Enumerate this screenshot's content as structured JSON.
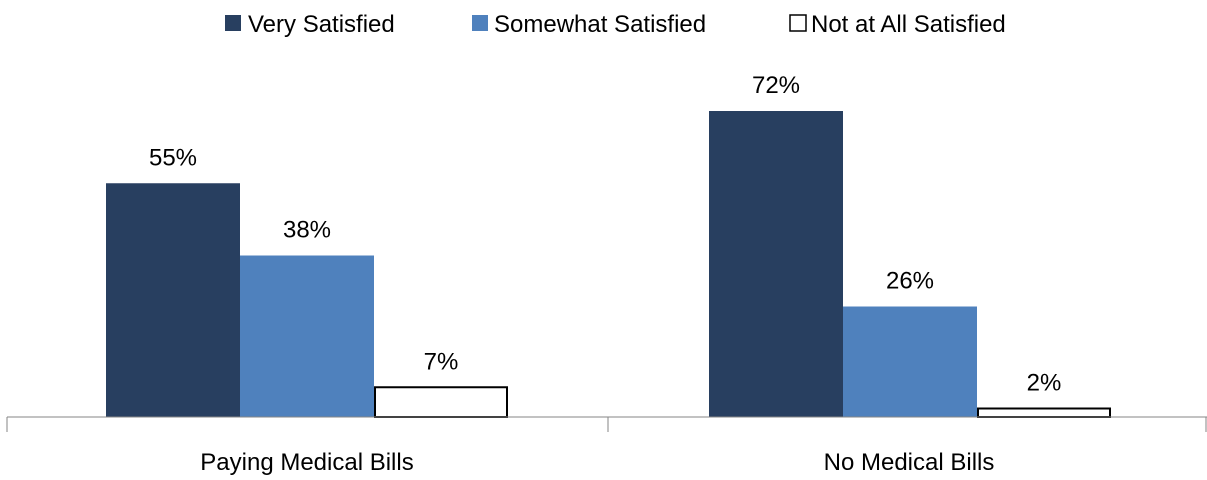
{
  "chart_data": {
    "type": "bar",
    "categories": [
      "Paying Medical Bills",
      "No Medical Bills"
    ],
    "series": [
      {
        "name": "Very Satisfied",
        "values": [
          55,
          72
        ],
        "labels": [
          "55%",
          "72%"
        ],
        "color": "#283F60",
        "stroke": "#283F60"
      },
      {
        "name": "Somewhat Satisfied",
        "values": [
          38,
          26
        ],
        "labels": [
          "38%",
          "26%"
        ],
        "color": "#4F81BD",
        "stroke": "#4F81BD"
      },
      {
        "name": "Not at All Satisfied",
        "values": [
          7,
          2
        ],
        "labels": [
          "7%",
          "2%"
        ],
        "color": "#FFFFFF",
        "stroke": "#000000"
      }
    ],
    "ylim": [
      0,
      80
    ],
    "legend_position": "top",
    "grid": false,
    "title": "",
    "xlabel": "",
    "ylabel": ""
  }
}
